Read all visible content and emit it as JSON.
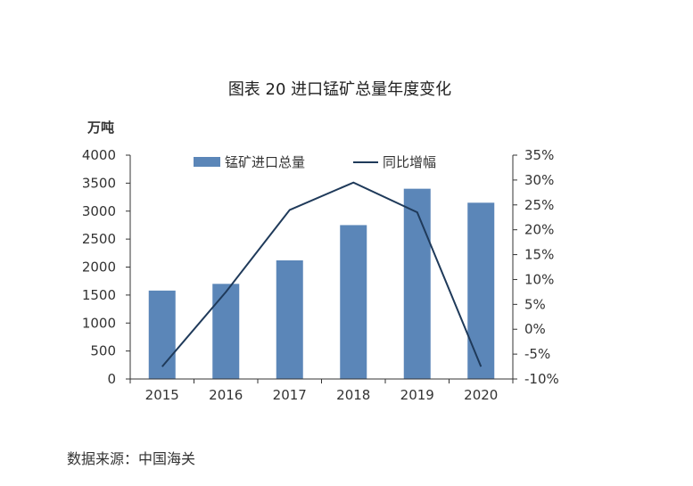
{
  "title": "图表 20 进口锰矿总量年度变化",
  "source": "数据来源：中国海关",
  "colors": {
    "bar": "#5b86b8",
    "line": "#1f3a5a",
    "axis": "#333333"
  },
  "chart_data": {
    "type": "bar",
    "title": "图表 20 进口锰矿总量年度变化",
    "categories": [
      "2015",
      "2016",
      "2017",
      "2018",
      "2019",
      "2020"
    ],
    "y_unit": "万吨",
    "ylim": [
      0,
      4000
    ],
    "yticks": [
      "0",
      "500",
      "1000",
      "1500",
      "2000",
      "2500",
      "3000",
      "3500",
      "4000"
    ],
    "y2lim": [
      -10,
      35
    ],
    "y2ticks": [
      "-10%",
      "-5%",
      "0%",
      "5%",
      "10%",
      "15%",
      "20%",
      "25%",
      "30%",
      "35%"
    ],
    "legend_position": "top",
    "grid": false,
    "series": [
      {
        "name": "锰矿进口总量",
        "type": "bar",
        "axis": "left",
        "values": [
          1580,
          1700,
          2120,
          2750,
          3400,
          3150
        ]
      },
      {
        "name": "同比增幅",
        "type": "line",
        "axis": "right",
        "values": [
          -7.5,
          7.5,
          24,
          29.5,
          23.5,
          -7.5
        ]
      }
    ]
  }
}
